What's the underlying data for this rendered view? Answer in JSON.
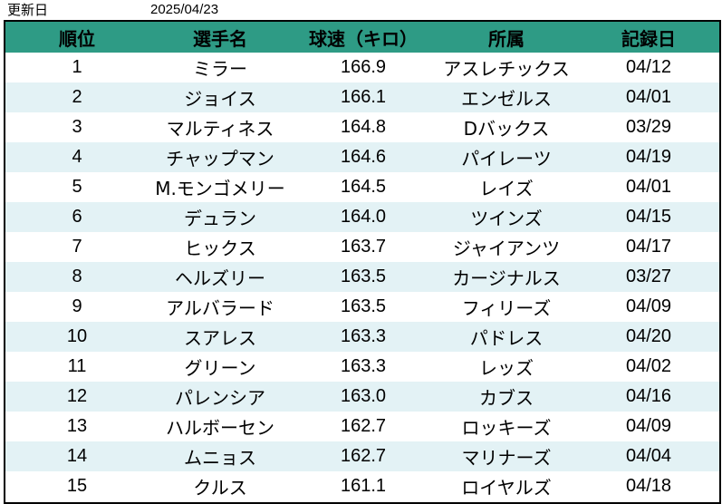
{
  "header": {
    "update_label": "更新日",
    "update_date": "2025/04/23"
  },
  "colors": {
    "header_bg": "#2e9b85",
    "stripe_bg": "#e3f2f5",
    "border": "#000000"
  },
  "table": {
    "columns": [
      "順位",
      "選手名",
      "球速（キロ）",
      "所属",
      "記録日"
    ],
    "rows": [
      {
        "rank": "1",
        "name": "ミラー",
        "speed": "166.9",
        "team": "アスレチックス",
        "date": "04/12"
      },
      {
        "rank": "2",
        "name": "ジョイス",
        "speed": "166.1",
        "team": "エンゼルス",
        "date": "04/01"
      },
      {
        "rank": "3",
        "name": "マルティネス",
        "speed": "164.8",
        "team": "Dバックス",
        "date": "03/29"
      },
      {
        "rank": "4",
        "name": "チャップマン",
        "speed": "164.6",
        "team": "パイレーツ",
        "date": "04/19"
      },
      {
        "rank": "5",
        "name": "M.モンゴメリー",
        "speed": "164.5",
        "team": "レイズ",
        "date": "04/01"
      },
      {
        "rank": "6",
        "name": "デュラン",
        "speed": "164.0",
        "team": "ツインズ",
        "date": "04/15"
      },
      {
        "rank": "7",
        "name": "ヒックス",
        "speed": "163.7",
        "team": "ジャイアンツ",
        "date": "04/17"
      },
      {
        "rank": "8",
        "name": "ヘルズリー",
        "speed": "163.5",
        "team": "カージナルス",
        "date": "03/27"
      },
      {
        "rank": "9",
        "name": "アルバラード",
        "speed": "163.5",
        "team": "フィリーズ",
        "date": "04/09"
      },
      {
        "rank": "10",
        "name": "スアレス",
        "speed": "163.3",
        "team": "パドレス",
        "date": "04/20"
      },
      {
        "rank": "11",
        "name": "グリーン",
        "speed": "163.3",
        "team": "レッズ",
        "date": "04/02"
      },
      {
        "rank": "12",
        "name": "パレンシア",
        "speed": "163.0",
        "team": "カブス",
        "date": "04/16"
      },
      {
        "rank": "13",
        "name": "ハルボーセン",
        "speed": "162.7",
        "team": "ロッキーズ",
        "date": "04/09"
      },
      {
        "rank": "14",
        "name": "ムニョス",
        "speed": "162.7",
        "team": "マリナーズ",
        "date": "04/04"
      },
      {
        "rank": "15",
        "name": "クルス",
        "speed": "161.1",
        "team": "ロイヤルズ",
        "date": "04/18"
      }
    ]
  }
}
